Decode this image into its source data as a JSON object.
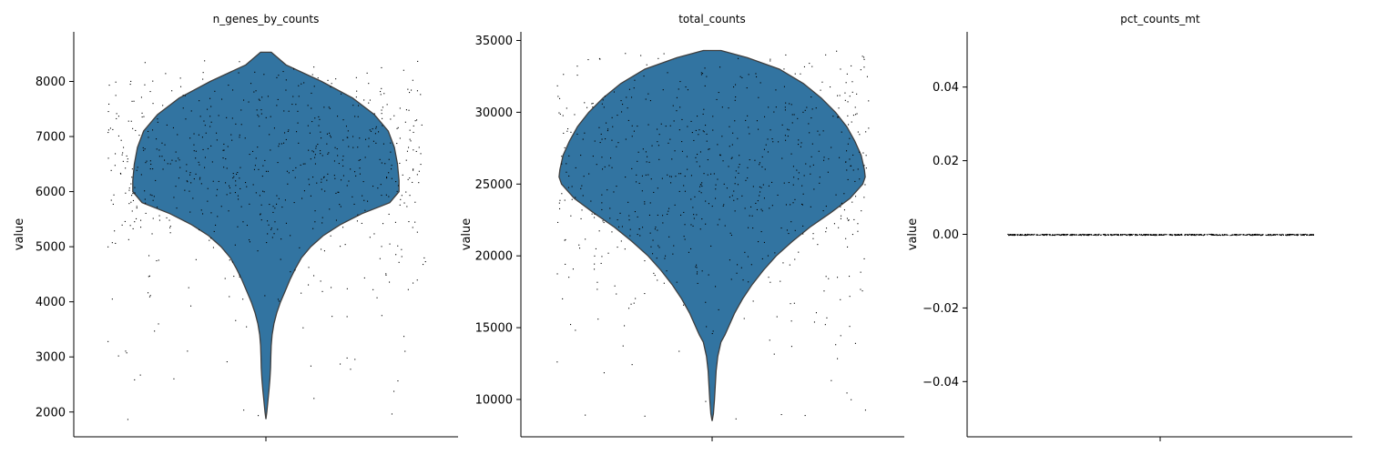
{
  "colors": {
    "violin_fill": "#3274a1",
    "violin_edge": "#3f3f3f",
    "point": "#000000",
    "axis": "#000000"
  },
  "chart_data": [
    {
      "type": "violin",
      "title": "n_genes_by_counts",
      "xlabel": "",
      "ylabel": "value",
      "yticks": [
        "2000",
        "3000",
        "4000",
        "5000",
        "6000",
        "7000",
        "8000"
      ],
      "ylim": [
        1550,
        8900
      ],
      "grid": false,
      "legend": "none",
      "density_profile": [
        [
          8530,
          0.035
        ],
        [
          8300,
          0.13
        ],
        [
          8000,
          0.36
        ],
        [
          7700,
          0.56
        ],
        [
          7400,
          0.7
        ],
        [
          7100,
          0.79
        ],
        [
          6800,
          0.83
        ],
        [
          6500,
          0.85
        ],
        [
          6200,
          0.86
        ],
        [
          6000,
          0.86
        ],
        [
          5800,
          0.8
        ],
        [
          5600,
          0.62
        ],
        [
          5400,
          0.48
        ],
        [
          5200,
          0.37
        ],
        [
          5000,
          0.29
        ],
        [
          4800,
          0.23
        ],
        [
          4600,
          0.19
        ],
        [
          4400,
          0.155
        ],
        [
          4200,
          0.125
        ],
        [
          4000,
          0.095
        ],
        [
          3800,
          0.07
        ],
        [
          3600,
          0.052
        ],
        [
          3400,
          0.04
        ],
        [
          3200,
          0.034
        ],
        [
          3000,
          0.032
        ],
        [
          2800,
          0.03
        ],
        [
          2600,
          0.026
        ],
        [
          2400,
          0.02
        ],
        [
          2200,
          0.013
        ],
        [
          2000,
          0.006
        ],
        [
          1870,
          0.0
        ]
      ],
      "points_range": [
        1870,
        8530
      ],
      "n_points": 700
    },
    {
      "type": "violin",
      "title": "total_counts",
      "xlabel": "",
      "ylabel": "value",
      "yticks": [
        "10000",
        "15000",
        "20000",
        "25000",
        "30000",
        "35000"
      ],
      "ylim": [
        7400,
        35600
      ],
      "grid": false,
      "legend": "none",
      "density_profile": [
        [
          34300,
          0.055
        ],
        [
          33800,
          0.22
        ],
        [
          33000,
          0.42
        ],
        [
          32000,
          0.57
        ],
        [
          31000,
          0.68
        ],
        [
          30000,
          0.77
        ],
        [
          29000,
          0.84
        ],
        [
          28000,
          0.89
        ],
        [
          27000,
          0.93
        ],
        [
          26000,
          0.95
        ],
        [
          25500,
          0.955
        ],
        [
          25000,
          0.94
        ],
        [
          24000,
          0.86
        ],
        [
          23000,
          0.74
        ],
        [
          22000,
          0.61
        ],
        [
          21000,
          0.5
        ],
        [
          20000,
          0.4
        ],
        [
          19000,
          0.32
        ],
        [
          18000,
          0.25
        ],
        [
          17000,
          0.19
        ],
        [
          16000,
          0.14
        ],
        [
          15000,
          0.1
        ],
        [
          14500,
          0.08
        ],
        [
          14000,
          0.055
        ],
        [
          13000,
          0.035
        ],
        [
          12000,
          0.025
        ],
        [
          11000,
          0.02
        ],
        [
          10000,
          0.015
        ],
        [
          9000,
          0.008
        ],
        [
          8500,
          0.0
        ]
      ],
      "points_range": [
        8500,
        34300
      ],
      "n_points": 700
    },
    {
      "type": "violin",
      "title": "pct_counts_mt",
      "xlabel": "",
      "ylabel": "value",
      "yticks": [
        "−0.04",
        "−0.02",
        "0.00",
        "0.02",
        "0.04"
      ],
      "ylim": [
        -0.055,
        0.055
      ],
      "grid": false,
      "legend": "none",
      "constant_value": 0.0,
      "n_points": 700
    }
  ]
}
